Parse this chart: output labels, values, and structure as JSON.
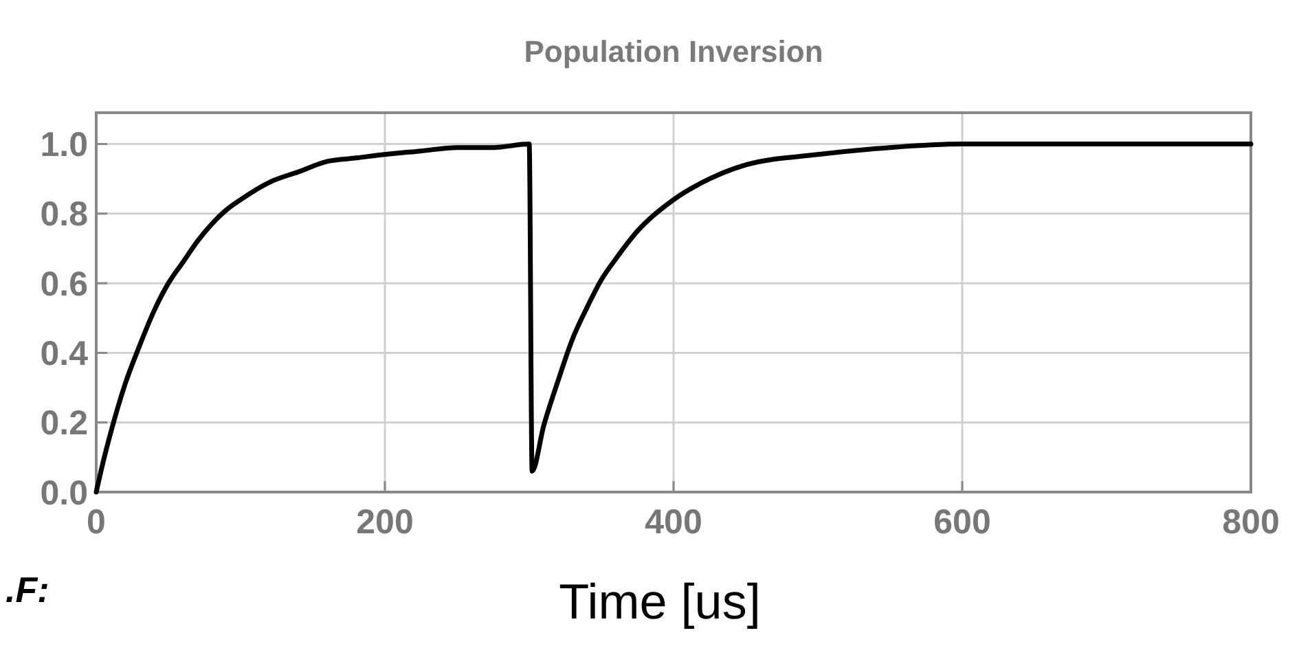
{
  "chart_data": {
    "type": "line",
    "title": "Population Inversion",
    "xlabel": "Time [us]",
    "annotations": [
      ".F:"
    ],
    "x": [
      0,
      5,
      10,
      20,
      30,
      40,
      50,
      60,
      70,
      80,
      90,
      100,
      120,
      140,
      160,
      180,
      200,
      225,
      250,
      275,
      300,
      302,
      310,
      320,
      330,
      340,
      350,
      360,
      375,
      400,
      425,
      450,
      500,
      550,
      600,
      700,
      800
    ],
    "series": [
      {
        "color": "#000000",
        "values": [
          0,
          0.09,
          0.17,
          0.31,
          0.42,
          0.52,
          0.6,
          0.66,
          0.72,
          0.77,
          0.81,
          0.84,
          0.89,
          0.92,
          0.95,
          0.96,
          0.97,
          0.98,
          0.99,
          0.99,
          1.0,
          0.06,
          0.19,
          0.32,
          0.44,
          0.53,
          0.61,
          0.67,
          0.75,
          0.84,
          0.9,
          0.94,
          0.97,
          0.99,
          1.0,
          1.0,
          1.0
        ]
      }
    ],
    "xlim": [
      0,
      800
    ],
    "xticks": [
      0,
      200,
      400,
      600,
      800
    ],
    "ylim": [
      0,
      1.09
    ],
    "yticks": [
      {
        "value": 0,
        "label": "0.0"
      },
      {
        "value": 0.2,
        "label": "0.2"
      },
      {
        "value": 0.4,
        "label": "0.4"
      },
      {
        "value": 0.6,
        "label": "0.6"
      },
      {
        "value": 0.8,
        "label": "0.8"
      },
      {
        "value": 1,
        "label": "1.0"
      }
    ],
    "grid": true,
    "line_style": "solid",
    "marker": "none"
  }
}
